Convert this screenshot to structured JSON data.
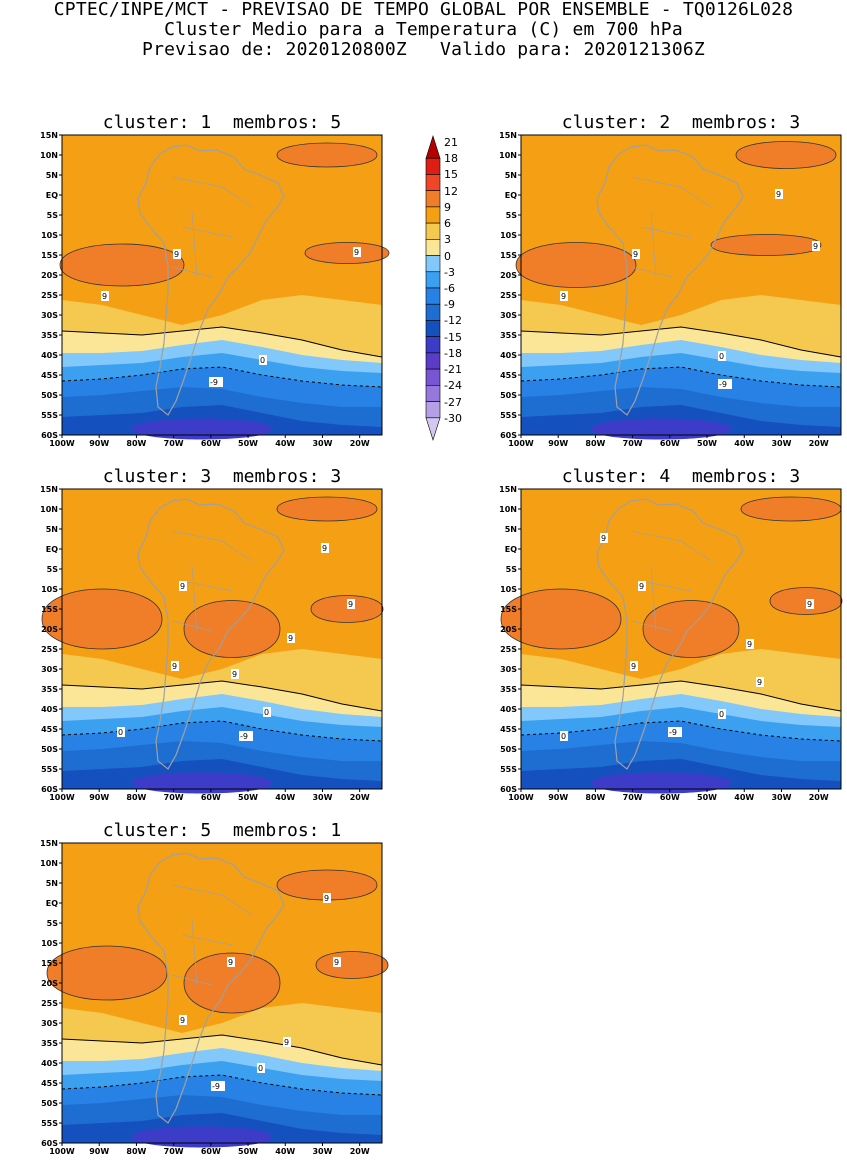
{
  "header": {
    "line1": "CPTEC/INPE/MCT - PREVISAO DE TEMPO GLOBAL POR ENSEMBLE - TQ0126L028",
    "line2": "Cluster Medio para a Temperatura (C) em 700 hPa",
    "line3": "Previsao de: 2020120800Z   Valido para: 2020121306Z"
  },
  "axes": {
    "lat_labels": [
      "15N",
      "10N",
      "5N",
      "EQ",
      "5S",
      "10S",
      "15S",
      "20S",
      "25S",
      "30S",
      "35S",
      "40S",
      "45S",
      "50S",
      "55S",
      "60S"
    ],
    "lon_labels": [
      "100W",
      "90W",
      "80W",
      "70W",
      "60W",
      "50W",
      "40W",
      "30W",
      "20W"
    ]
  },
  "colorbar": {
    "levels": [
      "21",
      "18",
      "15",
      "12",
      "9",
      "6",
      "3",
      "0",
      "-3",
      "-6",
      "-9",
      "-12",
      "-15",
      "-18",
      "-21",
      "-24",
      "-27",
      "-30"
    ],
    "colors": [
      "#b40000",
      "#dc1e14",
      "#f04628",
      "#f07d28",
      "#f5a014",
      "#f5c850",
      "#fae696",
      "#82c8fa",
      "#3ca0f0",
      "#2882e6",
      "#1e6ed2",
      "#1450be",
      "#3c3cc8",
      "#5a3cc8",
      "#7855d2",
      "#9678dc",
      "#b4a0e6",
      "#d2c8f0"
    ]
  },
  "palette": {
    "band_ge_12": "#f05a1e",
    "band_9_12": "#f07d28",
    "band_6_9": "#f5a014",
    "band_3_6": "#f5c850",
    "band_0_3": "#fae696",
    "band_m3_0": "#82c8fa",
    "band_m6_m3": "#3ca0f0",
    "band_m9_m6": "#2882e6",
    "band_m12_m9": "#1e6ed2",
    "band_m15_m12": "#1450be",
    "band_m18_m15": "#3c3cc8",
    "land": "#a0a0a0"
  },
  "panels": [
    {
      "title": "cluster: 1  membros: 5",
      "contour_labels": [
        "9",
        "9",
        "9",
        "0",
        "-9"
      ]
    },
    {
      "title": "cluster: 2  membros: 3",
      "contour_labels": [
        "9",
        "9",
        "9",
        "9",
        "0",
        "-9"
      ]
    },
    {
      "title": "cluster: 3  membros: 3",
      "contour_labels": [
        "9",
        "9",
        "9",
        "9",
        "9",
        "9",
        "0",
        "0",
        "-9"
      ]
    },
    {
      "title": "cluster: 4  membros: 3",
      "contour_labels": [
        "9",
        "9",
        "9",
        "9",
        "9",
        "9",
        "0",
        "0",
        "-9"
      ]
    },
    {
      "title": "cluster: 5  membros: 1",
      "contour_labels": [
        "9",
        "9",
        "9",
        "9",
        "9",
        "0",
        "-9"
      ]
    }
  ]
}
